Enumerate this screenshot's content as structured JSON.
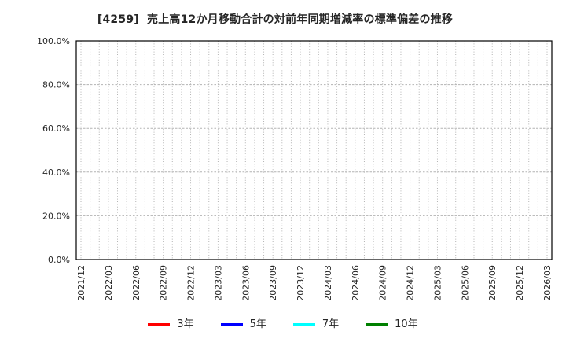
{
  "chart_data": {
    "type": "line",
    "title": "[4259]  売上高12か月移動合計の対前年同期増減率の標準偏差の推移",
    "x_tick_labels": [
      "2021/12",
      "2022/03",
      "2022/06",
      "2022/09",
      "2022/12",
      "2023/03",
      "2023/06",
      "2023/09",
      "2023/12",
      "2024/03",
      "2024/06",
      "2024/09",
      "2024/12",
      "2025/03",
      "2025/06",
      "2025/09",
      "2025/12",
      "2026/03"
    ],
    "x_minor_gridlines_per_label_interval": 3,
    "y_tick_labels": [
      "0.0%",
      "20.0%",
      "40.0%",
      "60.0%",
      "80.0%",
      "100.0%"
    ],
    "y_tick_values": [
      0,
      20,
      40,
      60,
      80,
      100
    ],
    "ylim": [
      0,
      100
    ],
    "grid": true,
    "legend_position": "bottom",
    "series": [
      {
        "name": "3年",
        "color": "#ff0000",
        "values": []
      },
      {
        "name": "5年",
        "color": "#0000ff",
        "values": []
      },
      {
        "name": "7年",
        "color": "#00ffff",
        "values": []
      },
      {
        "name": "10年",
        "color": "#008000",
        "values": []
      }
    ]
  },
  "colors": {
    "grid": "#b3b3b3",
    "axis_border": "#000000",
    "tick_text": "#262626",
    "background": "#ffffff"
  }
}
